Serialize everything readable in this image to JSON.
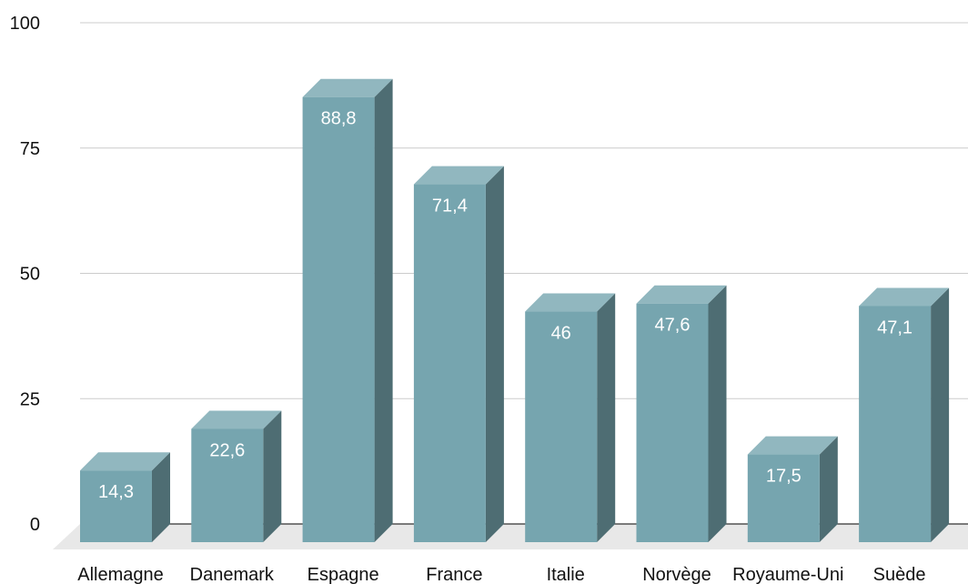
{
  "chart_data": {
    "type": "bar",
    "style": "3d",
    "title": "",
    "xlabel": "",
    "ylabel": "",
    "categories": [
      "Allemagne",
      "Danemark",
      "Espagne",
      "France",
      "Italie",
      "Norvège",
      "Royaume-Uni",
      "Suède"
    ],
    "values": [
      14.3,
      22.6,
      88.8,
      71.4,
      46,
      47.6,
      17.5,
      47.1
    ],
    "data_labels": [
      "14,3",
      "22,6",
      "88,8",
      "71,4",
      "46",
      "47,6",
      "17,5",
      "47,1"
    ],
    "ylim": [
      0,
      100
    ],
    "yticks": [
      0,
      25,
      50,
      75,
      100
    ],
    "grid": true,
    "legend": "none",
    "colors": {
      "bar_front": "#76A5AF",
      "bar_top": "#91B7BF",
      "bar_side": "#4E6D73",
      "grid": "#CCCCCC",
      "floor": "#E8E8E8"
    }
  }
}
